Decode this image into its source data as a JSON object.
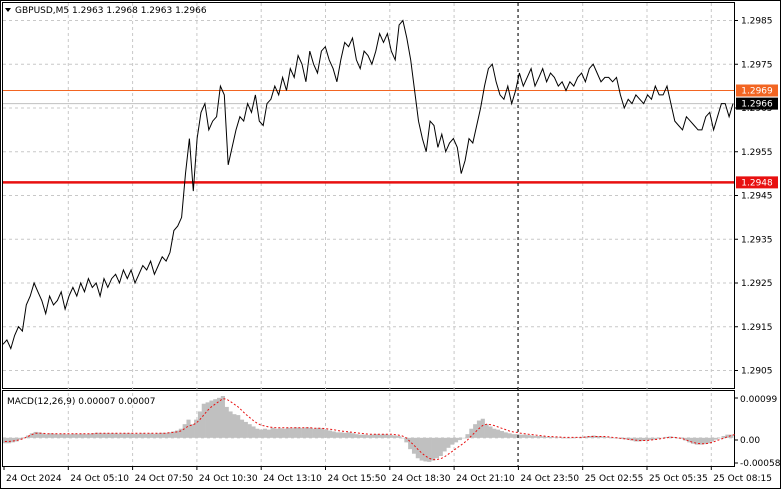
{
  "window": {
    "symbol_header": "GBPUSD,M5  1.2963 1.2968 1.2963 1.2966",
    "menu_icon": "triangle-down-icon"
  },
  "price_axis": {
    "ticks": [
      "1.2985",
      "1.2975",
      "1.2965",
      "1.2955",
      "1.2945",
      "1.2935",
      "1.2925",
      "1.2915",
      "1.2905"
    ],
    "levels": [
      {
        "label": "1.2969",
        "value": 1.2969,
        "color": "#f26522",
        "style": "thin"
      },
      {
        "label": "1.2948",
        "value": 1.2948,
        "color": "#e81010",
        "style": "thick"
      }
    ],
    "current": {
      "label": "1.2966",
      "value": 1.2966,
      "color": "#000000"
    }
  },
  "time_axis": {
    "labels": [
      "24 Oct 2024",
      "24 Oct 05:10",
      "24 Oct 07:50",
      "24 Oct 10:30",
      "24 Oct 13:10",
      "24 Oct 15:50",
      "24 Oct 18:30",
      "24 Oct 21:10",
      "24 Oct 23:50",
      "25 Oct 02:55",
      "25 Oct 05:35",
      "25 Oct 08:15"
    ]
  },
  "macd_panel": {
    "header": "MACD(12,26,9) 0.00007 0.00007",
    "ticks": [
      "0.00099",
      "0.00",
      "-0.00058"
    ]
  },
  "chart_data": [
    {
      "type": "line",
      "title": "GBPUSD,M5",
      "ylim": [
        1.2901,
        1.2989
      ],
      "grid": true,
      "series": [
        {
          "values": [
            1.2911,
            1.2912,
            1.291,
            1.2913,
            1.2915,
            1.2914,
            1.292,
            1.2922,
            1.2925,
            1.2923,
            1.2921,
            1.2918,
            1.2922,
            1.292,
            1.2921,
            1.2923,
            1.2919,
            1.2922,
            1.2924,
            1.2922,
            1.2925,
            1.2923,
            1.2926,
            1.2924,
            1.2925,
            1.2922,
            1.2926,
            1.2924,
            1.2926,
            1.2927,
            1.2925,
            1.2928,
            1.2926,
            1.2928,
            1.2925,
            1.2927,
            1.2929,
            1.2928,
            1.293,
            1.2927,
            1.2929,
            1.2931,
            1.293,
            1.2932,
            1.2937,
            1.2938,
            1.294,
            1.295,
            1.2958,
            1.2946,
            1.2958,
            1.2964,
            1.2966,
            1.296,
            1.2962,
            1.2963,
            1.297,
            1.2968,
            1.2952,
            1.2956,
            1.296,
            1.2963,
            1.2962,
            1.2966,
            1.2964,
            1.2968,
            1.2962,
            1.2961,
            1.2966,
            1.2967,
            1.297,
            1.2968,
            1.2972,
            1.2969,
            1.2974,
            1.2972,
            1.2977,
            1.2975,
            1.2971,
            1.2978,
            1.2975,
            1.2973,
            1.2978,
            1.2979,
            1.2976,
            1.2974,
            1.2971,
            1.2976,
            1.298,
            1.2979,
            1.2981,
            1.2976,
            1.2974,
            1.2978,
            1.2977,
            1.2975,
            1.2978,
            1.2982,
            1.298,
            1.2982,
            1.2978,
            1.2976,
            1.2984,
            1.2985,
            1.2981,
            1.2976,
            1.2969,
            1.2962,
            1.2958,
            1.2955,
            1.2962,
            1.2961,
            1.2956,
            1.2959,
            1.2955,
            1.2957,
            1.2958,
            1.2956,
            1.295,
            1.2953,
            1.2958,
            1.2957,
            1.2961,
            1.2965,
            1.297,
            1.2974,
            1.2975,
            1.2971,
            1.2968,
            1.2967,
            1.297,
            1.2966,
            1.2969,
            1.2973,
            1.297,
            1.2972,
            1.2974,
            1.297,
            1.2972,
            1.2974,
            1.2971,
            1.2973,
            1.2972,
            1.297,
            1.2971,
            1.2969,
            1.2971,
            1.297,
            1.2972,
            1.2973,
            1.2971,
            1.2974,
            1.2975,
            1.2973,
            1.2971,
            1.2972,
            1.2972,
            1.2971,
            1.2972,
            1.2968,
            1.2965,
            1.2967,
            1.2966,
            1.2968,
            1.2967,
            1.2966,
            1.2968,
            1.2967,
            1.297,
            1.2968,
            1.2968,
            1.297,
            1.2966,
            1.2962,
            1.2961,
            1.296,
            1.2963,
            1.2962,
            1.2961,
            1.296,
            1.296,
            1.2963,
            1.2964,
            1.296,
            1.2963,
            1.2966,
            1.2966,
            1.2963,
            1.2966
          ]
        }
      ]
    },
    {
      "type": "bar",
      "title": "MACD(12,26,9) 0.00007 0.00007",
      "ylim": [
        -0.00062,
        0.00103
      ],
      "series": [
        {
          "name": "MACD",
          "values": [
            -0.00012,
            -0.00012,
            -0.0001,
            -8e-05,
            -4e-05,
            0.0,
            5e-05,
            0.0001,
            0.00013,
            0.00012,
            0.0001,
            8e-05,
            0.0001,
            9e-05,
            8e-05,
            9e-05,
            8e-05,
            8e-05,
            9e-05,
            8e-05,
            9e-05,
            8e-05,
            9e-05,
            0.0001,
            0.00011,
            0.0001,
            0.0001,
            0.0001,
            0.0001,
            0.0001,
            9e-05,
            0.0001,
            0.0001,
            0.0001,
            9e-05,
            9e-05,
            0.0001,
            9e-05,
            0.0001,
            9e-05,
            0.0001,
            0.00011,
            0.00011,
            0.00012,
            0.00014,
            0.00016,
            0.0002,
            0.0003,
            0.0004,
            0.0003,
            0.0004,
            0.00058,
            0.00075,
            0.00078,
            0.00082,
            0.00085,
            0.00088,
            0.00092,
            0.00068,
            0.00058,
            0.00052,
            0.0005,
            0.0004,
            0.00035,
            0.0003,
            0.00025,
            0.0002,
            0.00018,
            0.0002,
            0.00018,
            0.00022,
            0.0002,
            0.00021,
            0.0002,
            0.00022,
            0.00021,
            0.00023,
            0.00022,
            0.00021,
            0.00023,
            0.00022,
            0.0002,
            0.00022,
            0.00021,
            0.00018,
            0.00016,
            0.00014,
            0.00012,
            0.00012,
            0.00011,
            0.00012,
            0.0001,
            8e-05,
            7e-05,
            7e-05,
            6e-05,
            7e-05,
            8e-05,
            7e-05,
            8e-05,
            7e-05,
            6e-05,
            5e-05,
            4e-05,
            0.0,
            -0.0001,
            -0.00025,
            -0.00035,
            -0.00045,
            -0.0005,
            -0.00052,
            -0.00053,
            -0.0005,
            -0.00045,
            -0.0004,
            -0.0003,
            -0.00022,
            -0.00015,
            -0.0001,
            -5e-05,
            0.0,
            8e-05,
            0.0002,
            0.0003,
            0.00038,
            0.00042,
            0.0003,
            0.00025,
            0.0002,
            0.00018,
            0.00015,
            0.00012,
            0.0001,
            8e-05,
            8e-05,
            7e-05,
            7e-05,
            6e-05,
            5e-05,
            4e-05,
            4e-05,
            3e-05,
            2e-05,
            2e-05,
            1e-05,
            1e-05,
            0.0,
            0.0,
            0.0,
            1e-05,
            1e-05,
            2e-05,
            3e-05,
            4e-05,
            5e-05,
            4e-05,
            3e-05,
            2e-05,
            1e-05,
            0.0,
            -1e-05,
            -2e-05,
            -3e-05,
            -4e-05,
            -6e-05,
            -8e-05,
            -8e-05,
            -7e-05,
            -6e-05,
            -5e-05,
            -4e-05,
            -2e-05,
            0.0,
            2e-05,
            3e-05,
            2e-05,
            0.0,
            -2e-05,
            -6e-05,
            -0.0001,
            -0.00013,
            -0.00015,
            -0.00015,
            -0.00014,
            -0.00012,
            -8e-05,
            -4e-05,
            0.0,
            4e-05,
            7e-05,
            7e-05
          ]
        },
        {
          "name": "Signal",
          "values": [
            -8e-05,
            -8e-05,
            -7e-05,
            -6e-05,
            -4e-05,
            -1e-05,
            3e-05,
            7e-05,
            0.0001,
            0.0001,
            0.0001,
            9e-05,
            9e-05,
            9e-05,
            9e-05,
            9e-05,
            9e-05,
            9e-05,
            9e-05,
            9e-05,
            9e-05,
            9e-05,
            9e-05,
            9e-05,
            0.0001,
            0.0001,
            0.0001,
            0.0001,
            0.0001,
            0.0001,
            0.0001,
            0.0001,
            0.0001,
            0.0001,
            0.0001,
            0.0001,
            0.0001,
            0.0001,
            0.0001,
            0.0001,
            0.0001,
            0.0001,
            0.0001,
            0.00011,
            0.00012,
            0.00013,
            0.00015,
            0.0002,
            0.00026,
            0.00028,
            0.00032,
            0.0004,
            0.0005,
            0.0006,
            0.00068,
            0.00074,
            0.0008,
            0.00086,
            0.00085,
            0.0008,
            0.00074,
            0.00068,
            0.0006,
            0.00052,
            0.00045,
            0.00038,
            0.00032,
            0.00028,
            0.00026,
            0.00024,
            0.00023,
            0.00022,
            0.00022,
            0.00022,
            0.00022,
            0.00022,
            0.00022,
            0.00022,
            0.00022,
            0.00022,
            0.00022,
            0.00021,
            0.00021,
            0.00021,
            0.0002,
            0.00019,
            0.00018,
            0.00016,
            0.00015,
            0.00014,
            0.00013,
            0.00012,
            0.00011,
            0.0001,
            9e-05,
            8e-05,
            8e-05,
            8e-05,
            8e-05,
            8e-05,
            8e-05,
            8e-05,
            7e-05,
            6e-05,
            4e-05,
            0.0,
            -8e-05,
            -0.00016,
            -0.00025,
            -0.00033,
            -0.0004,
            -0.00045,
            -0.00048,
            -0.00048,
            -0.00046,
            -0.00042,
            -0.00036,
            -0.0003,
            -0.00024,
            -0.00018,
            -0.00012,
            -5e-05,
            4e-05,
            0.00012,
            0.0002,
            0.00027,
            0.0003,
            0.00029,
            0.00027,
            0.00024,
            0.00021,
            0.00018,
            0.00015,
            0.00013,
            0.00012,
            0.0001,
            9e-05,
            8e-05,
            7e-05,
            6e-05,
            5e-05,
            4e-05,
            3e-05,
            3e-05,
            2e-05,
            2e-05,
            1e-05,
            1e-05,
            1e-05,
            1e-05,
            1e-05,
            1e-05,
            2e-05,
            3e-05,
            3e-05,
            3e-05,
            3e-05,
            3e-05,
            2e-05,
            1e-05,
            0.0,
            -1e-05,
            -2e-05,
            -3e-05,
            -4e-05,
            -5e-05,
            -6e-05,
            -6e-05,
            -6e-05,
            -5e-05,
            -4e-05,
            -3e-05,
            -1e-05,
            0.0,
            1e-05,
            1e-05,
            0.0,
            -1e-05,
            -4e-05,
            -7e-05,
            -0.0001,
            -0.00012,
            -0.00013,
            -0.00013,
            -0.00012,
            -0.0001,
            -7e-05,
            -4e-05,
            -1e-05,
            2e-05,
            5e-05,
            7e-05
          ]
        }
      ]
    }
  ]
}
